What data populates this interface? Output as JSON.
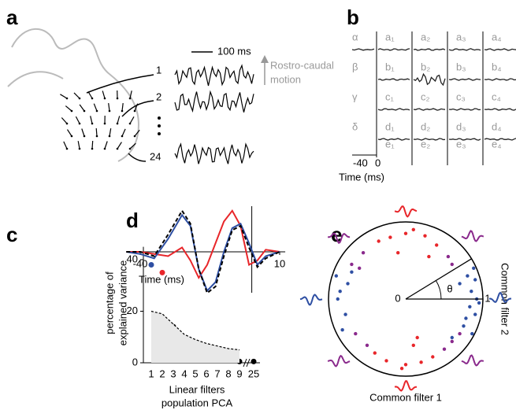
{
  "panel_a": {
    "label": "a",
    "scale_bar": "100 ms",
    "motion_label": [
      "Rostro-caudal",
      "motion"
    ],
    "trace_labels": [
      "1",
      "2",
      "24"
    ]
  },
  "panel_b": {
    "label": "b",
    "rows": [
      "α",
      "β",
      "γ",
      "δ"
    ],
    "cells": [
      [
        "a₁",
        "a₂",
        "a₃",
        "a₄"
      ],
      [
        "b₁",
        "b₂",
        "b₃",
        "b₄"
      ],
      [
        "c₁",
        "c₂",
        "c₃",
        "c₄"
      ],
      [
        "d₁",
        "d₂",
        "d₃",
        "d₄"
      ],
      [
        "e₁",
        "e₂",
        "e₃",
        "e₄"
      ]
    ],
    "time_ticks": [
      -40,
      0
    ],
    "time_label": "Time (ms)"
  },
  "chart_data": [
    {
      "panel_label": "c",
      "type": "dot",
      "ylabel": [
        "percentage of",
        "explained variance"
      ],
      "xlabel": [
        "Linear filters",
        "population PCA"
      ],
      "categories": [
        "1",
        "2",
        "3",
        "4",
        "5",
        "6",
        "7",
        "8",
        "9",
        "25"
      ],
      "ylim": [
        0,
        45
      ],
      "yticks": [
        0,
        20,
        40
      ],
      "series": [
        {
          "color": "#2e4fa3",
          "values": [
            38,
            null,
            null,
            null,
            null,
            null,
            null,
            null,
            null,
            null
          ]
        },
        {
          "color": "#e8262a",
          "values": [
            null,
            35,
            null,
            null,
            null,
            null,
            null,
            null,
            null,
            null
          ]
        },
        {
          "color": "#000000",
          "values": [
            null,
            null,
            14,
            9,
            3.5,
            2,
            1.5,
            1,
            0.5,
            0.5
          ]
        },
        {
          "color": "#000000",
          "style": "dashed-area",
          "fill": "#e8e8e8",
          "values": [
            20,
            19,
            15,
            11,
            9,
            7.5,
            6.5,
            5.5,
            5,
            null
          ]
        }
      ]
    },
    {
      "panel_label": "d",
      "type": "line",
      "xlabel": "Time (ms)",
      "x": [
        -45,
        -40,
        -35,
        -30,
        -25,
        -22,
        -19,
        -16,
        -13,
        -10,
        -7,
        -4,
        -1,
        2,
        5,
        10
      ],
      "xlim": [
        -45,
        12
      ],
      "xticks": [
        -40,
        10
      ],
      "ylim": [
        -1,
        1
      ],
      "series": [
        {
          "color": "#e8262a",
          "values": [
            0,
            0,
            -0.05,
            -0.1,
            0.1,
            -0.2,
            -0.6,
            -0.3,
            0.2,
            0.7,
            0.95,
            0.6,
            -0.3,
            -0.2,
            0.05,
            0
          ]
        },
        {
          "color": "#2e4fa3",
          "values": [
            0,
            -0.05,
            -0.15,
            0.3,
            0.85,
            0.6,
            -0.4,
            -0.9,
            -0.7,
            0,
            0.55,
            0.65,
            0.2,
            -0.3,
            -0.1,
            0
          ]
        },
        {
          "color": "#000000",
          "dash": true,
          "values": [
            0,
            0,
            -0.1,
            0.4,
            0.95,
            0.65,
            -0.4,
            -0.95,
            -0.8,
            -0.1,
            0.5,
            0.6,
            0.1,
            -0.35,
            -0.15,
            0
          ]
        }
      ]
    },
    {
      "panel_label": "e",
      "type": "scatter",
      "xlabel": "Common filter 1",
      "ylabel": "Common filter 2",
      "angle_label": "θ",
      "xlim": [
        -1,
        1
      ],
      "ylim": [
        -1,
        1
      ],
      "xticks": [
        0,
        1
      ],
      "series": [
        {
          "color": "#2e4fa3",
          "x": [
            0.85,
            0.9,
            0.8,
            0.92,
            0.75,
            0.88,
            0.83,
            0.95,
            0.7,
            0.86,
            -0.85,
            -0.78,
            -0.9,
            -0.7,
            -0.82,
            -0.88,
            0.78,
            0.9,
            -0.75,
            0.6
          ],
          "y": [
            0.1,
            -0.2,
            0.3,
            0.0,
            -0.35,
            0.4,
            -0.1,
            -0.05,
            0.2,
            -0.45,
            0.1,
            -0.2,
            0.3,
            0.35,
            -0.4,
            0.0,
            -0.25,
            0.25,
            0.2,
            -0.5
          ]
        },
        {
          "color": "#e8262a",
          "x": [
            0.0,
            -0.2,
            0.25,
            0.1,
            -0.35,
            0.4,
            -0.1,
            0.3,
            0.0,
            -0.25,
            0.2,
            0.1,
            -0.4,
            0.35,
            -0.05,
            0.15
          ],
          "y": [
            0.85,
            0.8,
            0.82,
            0.9,
            0.75,
            0.7,
            0.6,
            0.55,
            -0.85,
            -0.8,
            -0.82,
            -0.6,
            -0.7,
            -0.75,
            -0.9,
            -0.5
          ]
        },
        {
          "color": "#8a2a8c",
          "x": [
            0.55,
            0.6,
            -0.55,
            -0.6,
            0.6,
            0.5,
            -0.5,
            -0.65,
            0.7,
            -0.7
          ],
          "y": [
            0.55,
            0.45,
            0.6,
            0.4,
            -0.55,
            -0.65,
            -0.6,
            -0.45,
            -0.45,
            0.45
          ]
        }
      ]
    }
  ]
}
